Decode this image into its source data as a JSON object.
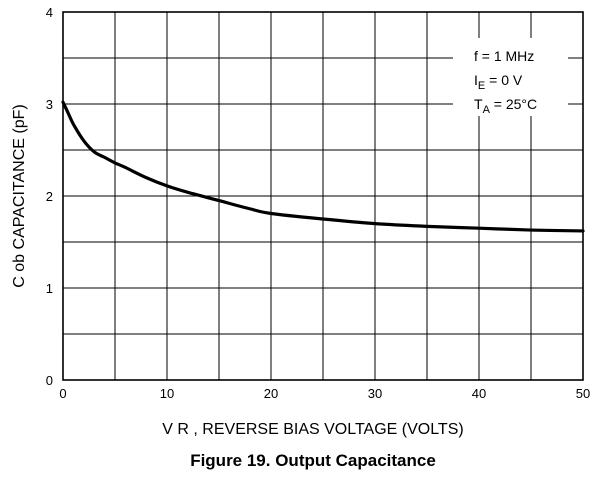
{
  "chart_data": {
    "type": "line",
    "title": "",
    "xlabel": "V R , REVERSE BIAS VOLTAGE (VOLTS)",
    "ylabel": "C ob CAPACITANCE (pF)",
    "xlim": [
      0,
      50
    ],
    "ylim": [
      0,
      4
    ],
    "x_ticks": [
      0,
      10,
      20,
      30,
      40,
      50
    ],
    "y_ticks": [
      0,
      1,
      2,
      3,
      4
    ],
    "x_tick_labels": [
      "0",
      "10",
      "20",
      "30",
      "40",
      "50"
    ],
    "y_tick_labels": [
      "0",
      "1",
      "2",
      "3",
      "4"
    ],
    "grid": true,
    "series": [
      {
        "x": [
          0,
          0.5,
          1,
          2,
          3,
          4,
          5,
          6,
          8,
          10,
          12,
          15,
          18,
          20,
          25,
          30,
          35,
          40,
          45,
          50
        ],
        "y": [
          3.02,
          2.9,
          2.78,
          2.6,
          2.48,
          2.42,
          2.36,
          2.31,
          2.2,
          2.11,
          2.04,
          1.95,
          1.86,
          1.81,
          1.75,
          1.7,
          1.67,
          1.65,
          1.63,
          1.62
        ]
      }
    ],
    "annotations": [
      {
        "base": "f = 1 MHz",
        "sub": ""
      },
      {
        "base": "I",
        "sub": "E",
        "rest": " = 0 V"
      },
      {
        "base": "T",
        "sub": "A",
        "rest": " = 25°C"
      }
    ],
    "legend_position": "top-right"
  },
  "caption": "Figure 19. Output Capacitance"
}
